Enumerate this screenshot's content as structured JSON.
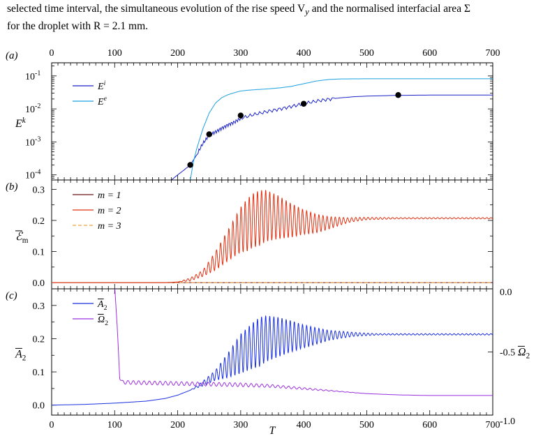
{
  "caption": {
    "line1": "selected time interval, the simultaneous evolution of the rise speed V",
    "line1_sub": "y",
    "line1_tail": " and the normalised interfacial area Σ",
    "line2": "for the droplet with R = 2.1 mm."
  },
  "colors": {
    "Ei": "#1a22c8",
    "Ee": "#1aa0e0",
    "m1": "#6a1414",
    "m2": "#e03010",
    "m3": "#f0a040",
    "A2": "#1a30e0",
    "Omega2": "#9a30e0",
    "marker": "#000000"
  },
  "xlabel": "T",
  "chart_data": [
    {
      "panel_label": "(a)",
      "type": "line",
      "yscale": "log",
      "xlim": [
        0,
        700
      ],
      "ylim": [
        7e-05,
        0.25
      ],
      "x_ticks": [
        "0",
        "100",
        "200",
        "300",
        "400",
        "500",
        "600",
        "700"
      ],
      "y_ticks": [
        {
          "base": "10",
          "exp": "-4",
          "value": 0.0001
        },
        {
          "base": "10",
          "exp": "-3",
          "value": 0.001
        },
        {
          "base": "10",
          "exp": "-2",
          "value": 0.01
        },
        {
          "base": "10",
          "exp": "-1",
          "value": 0.1
        }
      ],
      "ylabel": {
        "base": "E",
        "sup": "k"
      },
      "legend": [
        {
          "base": "E",
          "sup": "i",
          "color_key": "Ei"
        },
        {
          "base": "E",
          "sup": "e",
          "color_key": "Ee"
        }
      ],
      "series": [
        {
          "color_key": "Ei",
          "x": [
            190,
            200,
            210,
            220,
            230,
            240,
            250,
            260,
            270,
            280,
            290,
            300,
            320,
            340,
            360,
            380,
            400,
            420,
            440,
            460,
            480,
            500,
            550,
            600,
            650,
            700
          ],
          "y": [
            7e-05,
            0.0001,
            0.00014,
            0.0002,
            0.0004,
            0.0009,
            0.0016,
            0.002,
            0.0026,
            0.0033,
            0.004,
            0.0052,
            0.0067,
            0.0082,
            0.0098,
            0.0118,
            0.0145,
            0.0172,
            0.0198,
            0.0218,
            0.0234,
            0.0244,
            0.0258,
            0.0262,
            0.0263,
            0.0263
          ]
        },
        {
          "color_key": "Ee",
          "x": [
            220,
            225,
            230,
            240,
            250,
            260,
            270,
            280,
            290,
            300,
            320,
            340,
            360,
            380,
            400,
            420,
            440,
            460,
            500,
            550,
            600,
            650,
            700
          ],
          "y": [
            7e-05,
            0.00025,
            0.0006,
            0.0025,
            0.0075,
            0.015,
            0.022,
            0.027,
            0.031,
            0.035,
            0.038,
            0.04,
            0.043,
            0.048,
            0.058,
            0.07,
            0.078,
            0.081,
            0.082,
            0.082,
            0.082,
            0.082,
            0.082
          ]
        }
      ],
      "markers": {
        "x": [
          220,
          250,
          300,
          400,
          550
        ],
        "y": [
          0.0002,
          0.0017,
          0.0063,
          0.0143,
          0.0263
        ]
      }
    },
    {
      "panel_label": "(b)",
      "type": "line",
      "xlim": [
        0,
        700
      ],
      "ylim": [
        -0.02,
        0.33
      ],
      "y_ticks": [
        "0.0",
        "0.1",
        "0.2",
        "0.3"
      ],
      "y_tick_values": [
        0,
        0.1,
        0.2,
        0.3
      ],
      "ylabel": {
        "base": "ℰ",
        "sub": "m",
        "bar": true
      },
      "legend": [
        {
          "text": "m = 1",
          "color_key": "m1",
          "dashed": false
        },
        {
          "text": "m = 2",
          "color_key": "m2",
          "dashed": false
        },
        {
          "text": "m = 3",
          "color_key": "m3",
          "dashed": true
        }
      ],
      "series": [
        {
          "color_key": "m1",
          "x": [
            0,
            700
          ],
          "y": [
            0,
            0
          ]
        },
        {
          "color_key": "m3",
          "x": [
            0,
            700
          ],
          "y": [
            0,
            0
          ]
        },
        {
          "color_key": "m2",
          "center_x": [
            0,
            180,
            200,
            220,
            240,
            260,
            280,
            300,
            320,
            340,
            360,
            380,
            400,
            420,
            440,
            460,
            480,
            500,
            550,
            600,
            650,
            700
          ],
          "center_y": [
            0,
            0,
            0.002,
            0.01,
            0.03,
            0.07,
            0.12,
            0.17,
            0.2,
            0.215,
            0.21,
            0.2,
            0.195,
            0.19,
            0.192,
            0.198,
            0.203,
            0.206,
            0.207,
            0.207,
            0.207,
            0.207
          ],
          "amp_x": [
            0,
            200,
            240,
            280,
            310,
            330,
            360,
            400,
            440,
            470,
            500,
            550,
            700
          ],
          "amp_y": [
            0,
            0,
            0.01,
            0.05,
            0.085,
            0.09,
            0.07,
            0.04,
            0.02,
            0.008,
            0.004,
            0.002,
            0.002
          ],
          "period": 6.5
        }
      ]
    },
    {
      "panel_label": "(c)",
      "type": "line",
      "xlim": [
        0,
        700
      ],
      "ylim": [
        -0.03,
        0.35
      ],
      "y_ticks": [
        "0.0",
        "0.1",
        "0.2",
        "0.3"
      ],
      "y_tick_values": [
        0,
        0.1,
        0.2,
        0.3
      ],
      "ylabel": {
        "base": "A",
        "sub": "2",
        "bar": true
      },
      "right_ylim": [
        -1.0,
        0.0
      ],
      "right_ticks": [
        "0.0",
        "-0.5",
        "-1.0"
      ],
      "right_tick_values": [
        0.0,
        -0.5,
        -1.0
      ],
      "right_ylabel": {
        "base": "Ω",
        "sub": "2",
        "bar": true
      },
      "legend": [
        {
          "base": "A",
          "sub": "2",
          "bar": true,
          "color_key": "A2"
        },
        {
          "base": "Ω",
          "sub": "2",
          "bar": true,
          "color_key": "Omega2"
        }
      ],
      "series": [
        {
          "color_key": "A2",
          "axis": "left",
          "center_x": [
            0,
            50,
            100,
            150,
            180,
            200,
            220,
            240,
            260,
            280,
            300,
            320,
            340,
            360,
            380,
            400,
            420,
            440,
            460,
            480,
            500,
            550,
            600,
            650,
            700
          ],
          "center_y": [
            0,
            0.002,
            0.006,
            0.012,
            0.02,
            0.03,
            0.045,
            0.065,
            0.09,
            0.12,
            0.155,
            0.18,
            0.2,
            0.205,
            0.207,
            0.207,
            0.208,
            0.21,
            0.212,
            0.213,
            0.213,
            0.213,
            0.213,
            0.213,
            0.213
          ],
          "amp_x": [
            0,
            220,
            260,
            300,
            330,
            360,
            400,
            440,
            480,
            520,
            700
          ],
          "amp_y": [
            0,
            0,
            0.015,
            0.06,
            0.075,
            0.06,
            0.035,
            0.015,
            0.006,
            0.002,
            0.002
          ],
          "period": 6.5
        },
        {
          "color_key": "Omega2",
          "axis": "right",
          "center_x": [
            100,
            104,
            108,
            112,
            200,
            250,
            300,
            350,
            400,
            450,
            500,
            550,
            600,
            700
          ],
          "center_y": [
            0.03,
            -0.3,
            -0.7,
            -0.74,
            -0.75,
            -0.755,
            -0.76,
            -0.77,
            -0.79,
            -0.81,
            -0.83,
            -0.84,
            -0.845,
            -0.845
          ],
          "amp_x": [
            100,
            110,
            200,
            300,
            400,
            450,
            500,
            700
          ],
          "amp_y": [
            0,
            0.015,
            0.015,
            0.015,
            0.008,
            0.003,
            0,
            0
          ],
          "period": 8.5
        }
      ]
    }
  ]
}
